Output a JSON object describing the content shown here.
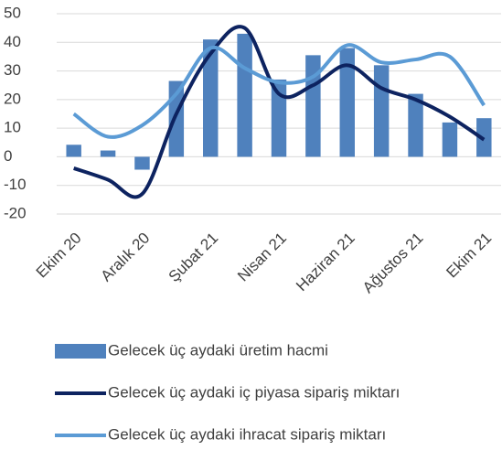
{
  "chart_data": {
    "type": "bar-line",
    "categories": [
      "Ekim 20",
      null,
      "Aralık 20",
      null,
      "Şubat 21",
      null,
      "Nisan 21",
      null,
      "Haziran 21",
      null,
      "Ağustos 21",
      null,
      "Ekim 21"
    ],
    "series": [
      {
        "name": "Gelecek üç aydaki üretim hacmi",
        "type": "bar",
        "color": "#4f81bd",
        "values": [
          4.2,
          2.2,
          -4.5,
          26.5,
          41,
          43,
          27,
          35.5,
          38,
          32,
          22,
          12,
          13.5
        ]
      },
      {
        "name": "Gelecek üç aydaki iç piyasa sipariş miktarı",
        "type": "line",
        "color": "#0d2360",
        "values": [
          -4,
          -8,
          -13,
          15,
          36,
          45,
          22,
          25,
          32,
          24,
          20,
          14,
          6
        ]
      },
      {
        "name": "Gelecek üç aydaki ihracat sipariş miktarı",
        "type": "line",
        "color": "#5b9bd5",
        "values": [
          15,
          7,
          11,
          22,
          38,
          31,
          26,
          28,
          39,
          33,
          34,
          35,
          18
        ]
      }
    ],
    "ylim": [
      -20,
      50
    ],
    "yticks": [
      -20,
      -10,
      0,
      10,
      20,
      30,
      40,
      50
    ],
    "grid": true,
    "legend": "bottom"
  }
}
